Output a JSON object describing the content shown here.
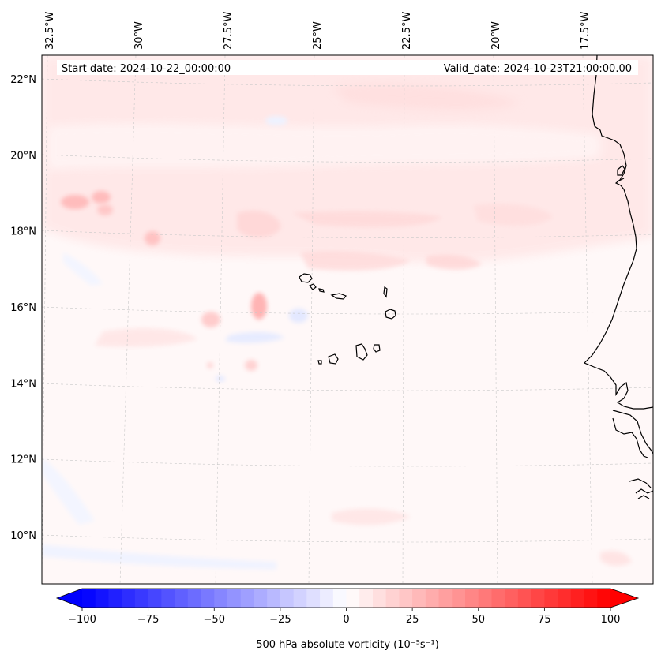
{
  "info": {
    "start_date": "Start date: 2024-10-22_00:00:00",
    "valid_date": "Valid_date: 2024-10-23T21:00:00.00"
  },
  "lon_ticks": [
    {
      "label": "32.5°W",
      "lon": -32.5
    },
    {
      "label": "30°W",
      "lon": -30
    },
    {
      "label": "27.5°W",
      "lon": -27.5
    },
    {
      "label": "25°W",
      "lon": -25
    },
    {
      "label": "22.5°W",
      "lon": -22.5
    },
    {
      "label": "20°W",
      "lon": -20
    },
    {
      "label": "17.5°W",
      "lon": -17.5
    }
  ],
  "lat_ticks": [
    {
      "label": "22°N",
      "lat": 22
    },
    {
      "label": "20°N",
      "lat": 20
    },
    {
      "label": "18°N",
      "lat": 18
    },
    {
      "label": "16°N",
      "lat": 16
    },
    {
      "label": "14°N",
      "lat": 14
    },
    {
      "label": "12°N",
      "lat": 12
    },
    {
      "label": "10°N",
      "lat": 10
    }
  ],
  "colorbar": {
    "title": "500 hPa absolute vorticity (10⁻⁵s⁻¹)",
    "min": -100,
    "max": 100,
    "step": 5,
    "ticks": [
      {
        "label": "−100",
        "value": -100
      },
      {
        "label": "−75",
        "value": -75
      },
      {
        "label": "−50",
        "value": -50
      },
      {
        "label": "−25",
        "value": -25
      },
      {
        "label": "0",
        "value": 0
      },
      {
        "label": "25",
        "value": 25
      },
      {
        "label": "50",
        "value": 50
      },
      {
        "label": "75",
        "value": 75
      },
      {
        "label": "100",
        "value": 100
      }
    ],
    "colormap": "bwr"
  }
}
